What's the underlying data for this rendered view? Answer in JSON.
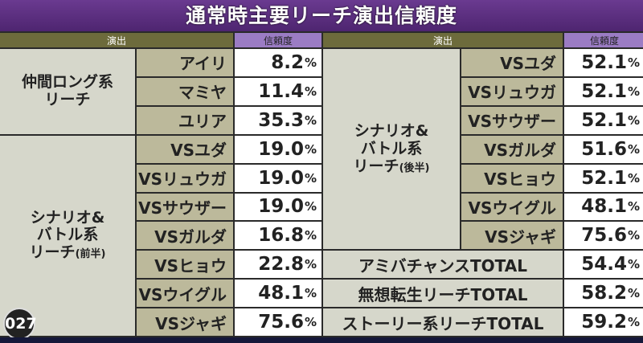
{
  "title": "通常時主要リーチ演出信頼度",
  "headers": {
    "performance": "演出",
    "reliability": "信頼度"
  },
  "left": {
    "groups": [
      {
        "label": "仲間ロング系\nリーチ",
        "items": [
          {
            "name": "アイリ",
            "value": "8.2"
          },
          {
            "name": "マミヤ",
            "value": "11.4"
          },
          {
            "name": "ユリア",
            "value": "35.3"
          }
        ]
      },
      {
        "label": "シナリオ&\nバトル系\nリーチ",
        "sub": "(前半)",
        "items": [
          {
            "name": "VSユダ",
            "value": "19.0"
          },
          {
            "name": "VSリュウガ",
            "value": "19.0"
          },
          {
            "name": "VSサウザー",
            "value": "19.0"
          },
          {
            "name": "VSガルダ",
            "value": "16.8"
          },
          {
            "name": "VSヒョウ",
            "value": "22.8"
          },
          {
            "name": "VSウイグル",
            "value": "48.1"
          },
          {
            "name": "VSジャギ",
            "value": "75.6"
          }
        ]
      }
    ]
  },
  "right": {
    "group": {
      "label": "シナリオ&\nバトル系\nリーチ",
      "sub": "(後半)",
      "items": [
        {
          "name": "VSユダ",
          "value": "52.1"
        },
        {
          "name": "VSリュウガ",
          "value": "52.1"
        },
        {
          "name": "VSサウザー",
          "value": "52.1"
        },
        {
          "name": "VSガルダ",
          "value": "51.6"
        },
        {
          "name": "VSヒョウ",
          "value": "52.1"
        },
        {
          "name": "VSウイグル",
          "value": "48.1"
        },
        {
          "name": "VSジャギ",
          "value": "75.6"
        }
      ]
    },
    "totals": [
      {
        "name": "アミバチャンスTOTAL",
        "value": "54.4"
      },
      {
        "name": "無想転生リーチTOTAL",
        "value": "58.2"
      },
      {
        "name": "ストーリー系リーチTOTAL",
        "value": "59.2"
      }
    ]
  },
  "percent": "%",
  "page_number": "027"
}
